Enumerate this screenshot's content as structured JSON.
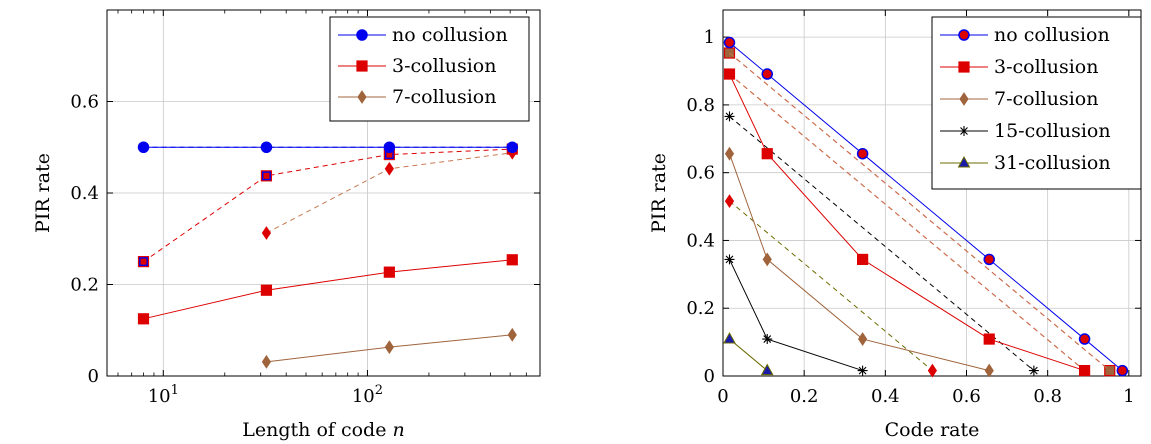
{
  "chart_data": [
    {
      "type": "line",
      "xscale": "log",
      "xlabel": "Length of code ",
      "xlabel_var": "n",
      "ylabel": "PIR rate",
      "xlim": [
        5.3,
        700
      ],
      "ylim": [
        0,
        0.8
      ],
      "xticks": [
        10,
        100
      ],
      "xtick_labels": [
        {
          "base": "10",
          "exp": "1"
        },
        {
          "base": "10",
          "exp": "2"
        }
      ],
      "yticks": [
        0,
        0.2,
        0.4,
        0.6
      ],
      "ytick_labels": [
        "0",
        "0.2",
        "0.4",
        "0.6"
      ],
      "grid": true,
      "legend_position": "top-right",
      "series": [
        {
          "name": "no collusion",
          "color": "#0000ee",
          "marker": "circle",
          "dash": false,
          "show_in_legend": true,
          "x": [
            8,
            32,
            128,
            512
          ],
          "y": [
            0.5,
            0.5,
            0.5,
            0.5
          ]
        },
        {
          "name": "3-collusion",
          "color": "#dd0000",
          "marker": "square",
          "dash": false,
          "show_in_legend": true,
          "x": [
            8,
            32,
            128,
            512
          ],
          "y": [
            0.125,
            0.1875,
            0.227,
            0.254
          ]
        },
        {
          "name": "7-collusion",
          "color": "#a0643c",
          "marker": "diamond",
          "dash": false,
          "show_in_legend": true,
          "x": [
            32,
            128,
            512
          ],
          "y": [
            0.031,
            0.063,
            0.09
          ]
        },
        {
          "name": "",
          "color": "#0000ee",
          "marker": "none",
          "dash": true,
          "show_in_legend": false,
          "x": [
            8,
            32,
            128,
            512
          ],
          "y": [
            0.5,
            0.5,
            0.5,
            0.5
          ]
        },
        {
          "name": "",
          "color": "#dd0000",
          "marker": "square-blue",
          "dash": true,
          "show_in_legend": false,
          "x": [
            8,
            32,
            128,
            512
          ],
          "y": [
            0.25,
            0.4375,
            0.484,
            0.496
          ]
        },
        {
          "name": "",
          "color": "#c87850",
          "marker": "diamond-red",
          "dash": true,
          "show_in_legend": false,
          "x": [
            32,
            128,
            512
          ],
          "y": [
            0.3125,
            0.453,
            0.488
          ]
        }
      ]
    },
    {
      "type": "line",
      "xscale": "linear",
      "xlabel": "Code rate",
      "xlabel_var": "",
      "ylabel": "PIR rate",
      "xlim": [
        0,
        1.03
      ],
      "ylim": [
        0,
        1.08
      ],
      "xticks": [
        0,
        0.2,
        0.4,
        0.6,
        0.8,
        1
      ],
      "xtick_labels": [
        "0",
        "0.2",
        "0.4",
        "0.6",
        "0.8",
        "1"
      ],
      "yticks": [
        0,
        0.2,
        0.4,
        0.6,
        0.8,
        1
      ],
      "ytick_labels": [
        "0",
        "0.2",
        "0.4",
        "0.6",
        "0.8",
        "1"
      ],
      "grid": true,
      "legend_position": "top-right",
      "series": [
        {
          "name": "no collusion",
          "color": "#0000ee",
          "marker": "circle-red",
          "dash": false,
          "show_in_legend": true,
          "x": [
            0.016,
            0.109,
            0.344,
            0.656,
            0.891,
            0.984
          ],
          "y": [
            0.984,
            0.891,
            0.656,
            0.344,
            0.109,
            0.016
          ]
        },
        {
          "name": "3-collusion",
          "color": "#dd0000",
          "marker": "square",
          "dash": false,
          "show_in_legend": true,
          "x": [
            0.016,
            0.109,
            0.344,
            0.656,
            0.891
          ],
          "y": [
            0.891,
            0.656,
            0.344,
            0.109,
            0.016
          ]
        },
        {
          "name": "7-collusion",
          "color": "#a0643c",
          "marker": "diamond",
          "dash": false,
          "show_in_legend": true,
          "x": [
            0.016,
            0.109,
            0.344,
            0.656
          ],
          "y": [
            0.656,
            0.344,
            0.109,
            0.016
          ]
        },
        {
          "name": "15-collusion",
          "color": "#000000",
          "marker": "star",
          "dash": false,
          "show_in_legend": true,
          "x": [
            0.016,
            0.109,
            0.344
          ],
          "y": [
            0.344,
            0.109,
            0.016
          ]
        },
        {
          "name": "31-collusion",
          "color": "#6b6b00",
          "marker": "triangle",
          "dash": false,
          "show_in_legend": true,
          "x": [
            0.016,
            0.109
          ],
          "y": [
            0.109,
            0.016
          ]
        },
        {
          "name": "",
          "color": "#dd0000",
          "marker": "square-olive",
          "dash": true,
          "show_in_legend": false,
          "x": [
            0.016,
            0.953
          ],
          "y": [
            0.953,
            0.016
          ]
        },
        {
          "name": "",
          "color": "#dd0000",
          "marker": "none",
          "dash": true,
          "show_in_legend": false,
          "x": [
            0.016,
            0.891
          ],
          "y": [
            0.891,
            0.016
          ]
        },
        {
          "name": "",
          "color": "#c87850",
          "marker": "none",
          "dash": true,
          "show_in_legend": false,
          "x": [
            0.016,
            0.953
          ],
          "y": [
            0.953,
            0.016
          ]
        },
        {
          "name": "",
          "color": "#c87850",
          "marker": "none",
          "dash": true,
          "show_in_legend": false,
          "x": [
            0.016,
            0.891
          ],
          "y": [
            0.891,
            0.016
          ]
        },
        {
          "name": "",
          "color": "#000000",
          "marker": "star-diamond",
          "dash": true,
          "show_in_legend": false,
          "x": [
            0.016,
            0.766
          ],
          "y": [
            0.766,
            0.016
          ]
        },
        {
          "name": "",
          "color": "#6b6b00",
          "marker": "diamond-red",
          "dash": true,
          "show_in_legend": false,
          "x": [
            0.016,
            0.516
          ],
          "y": [
            0.516,
            0.016
          ]
        }
      ]
    }
  ]
}
